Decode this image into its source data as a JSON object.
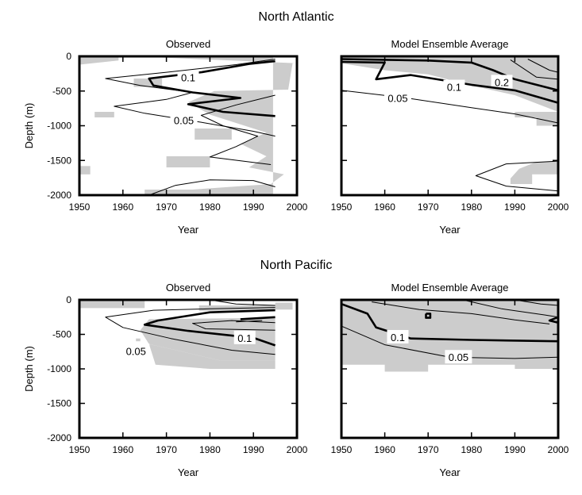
{
  "colors": {
    "shading": "#cccccc",
    "contour": "#000000",
    "background": "#ffffff"
  },
  "sections": [
    {
      "title": "North Atlantic"
    },
    {
      "title": "North Pacific"
    }
  ],
  "chart_data": [
    {
      "type": "contour",
      "region": "North Atlantic",
      "title": "Observed",
      "xlabel": "Year",
      "ylabel": "Depth (m)",
      "xlim": [
        1950,
        2000
      ],
      "ylim": [
        -2000,
        0
      ],
      "xticks": [
        "1950",
        "1960",
        "1970",
        "1980",
        "1990",
        "2000"
      ],
      "yticks": [
        "0",
        "-500",
        "-1000",
        "-1500",
        "-2000"
      ],
      "shading": "grey",
      "contours": [
        {
          "level": "0.1",
          "weight": "bold",
          "label_at": [
            1975,
            -300
          ],
          "points": [
            [
              1995,
              -70
            ],
            [
              1989,
              -110
            ],
            [
              1978,
              -230
            ],
            [
              1966,
              -320
            ],
            [
              1967,
              -420
            ],
            [
              1976,
              -520
            ],
            [
              1987,
              -600
            ],
            [
              1975,
              -690
            ],
            [
              1983,
              -800
            ],
            [
              1995,
              -860
            ]
          ]
        },
        {
          "level": "0.05",
          "weight": "thin",
          "label_at": [
            1974,
            -920
          ],
          "points": [
            [
              1995,
              -40
            ],
            [
              1986,
              -120
            ],
            [
              1970,
              -230
            ],
            [
              1956,
              -320
            ],
            [
              1964,
              -420
            ],
            [
              1976,
              -520
            ],
            [
              1970,
              -620
            ],
            [
              1958,
              -720
            ],
            [
              1965,
              -820
            ],
            [
              1978,
              -950
            ],
            [
              1990,
              -1080
            ],
            [
              1995,
              -1150
            ]
          ]
        },
        {
          "level": "",
          "weight": "thin",
          "points": [
            [
              1995,
              -560
            ],
            [
              1986,
              -700
            ],
            [
              1978,
              -850
            ],
            [
              1983,
              -1000
            ],
            [
              1991,
              -1150
            ],
            [
              1986,
              -1300
            ],
            [
              1980,
              -1450
            ],
            [
              1994,
              -1560
            ]
          ]
        },
        {
          "level": "",
          "weight": "thin",
          "points": [
            [
              1966,
              -2000
            ],
            [
              1972,
              -1860
            ],
            [
              1980,
              -1780
            ],
            [
              1990,
              -1790
            ],
            [
              1995,
              -1880
            ]
          ]
        }
      ]
    },
    {
      "type": "contour",
      "region": "North Atlantic",
      "title": "Model Ensemble Average",
      "xlabel": "Year",
      "ylabel": "",
      "xlim": [
        1950,
        2000
      ],
      "ylim": [
        -2000,
        0
      ],
      "xticks": [
        "1950",
        "1960",
        "1970",
        "1980",
        "1990",
        "2000"
      ],
      "yticks": [],
      "shading": "grey",
      "contours": [
        {
          "level": "0.2",
          "weight": "bold",
          "label_at": [
            1987,
            -370
          ],
          "points": [
            [
              1950,
              -40
            ],
            [
              1970,
              -60
            ],
            [
              1980,
              -90
            ],
            [
              1985,
              -200
            ],
            [
              1990,
              -330
            ],
            [
              2000,
              -490
            ]
          ]
        },
        {
          "level": "0.1",
          "weight": "bold",
          "label_at": [
            1976,
            -440
          ],
          "points": [
            [
              1950,
              -80
            ],
            [
              1960,
              -90
            ],
            [
              1958,
              -330
            ],
            [
              1966,
              -270
            ],
            [
              1980,
              -410
            ],
            [
              1990,
              -490
            ],
            [
              2000,
              -670
            ]
          ]
        },
        {
          "level": "0.05",
          "weight": "thin",
          "label_at": [
            1963,
            -600
          ],
          "points": [
            [
              1950,
              -490
            ],
            [
              1965,
              -600
            ],
            [
              1980,
              -740
            ],
            [
              1990,
              -830
            ],
            [
              2000,
              -960
            ]
          ]
        },
        {
          "level": "",
          "weight": "thin",
          "points": [
            [
              1989,
              -50
            ],
            [
              1995,
              -300
            ],
            [
              2000,
              -330
            ]
          ]
        },
        {
          "level": "",
          "weight": "thin",
          "points": [
            [
              1993,
              -40
            ],
            [
              1998,
              -200
            ],
            [
              2000,
              -230
            ]
          ]
        },
        {
          "level": "",
          "weight": "thin",
          "points": [
            [
              2000,
              -1510
            ],
            [
              1988,
              -1550
            ],
            [
              1981,
              -1720
            ],
            [
              1988,
              -1870
            ],
            [
              2000,
              -1940
            ]
          ]
        }
      ]
    },
    {
      "type": "contour",
      "region": "North Pacific",
      "title": "Observed",
      "xlabel": "Year",
      "ylabel": "Depth (m)",
      "xlim": [
        1950,
        2000
      ],
      "ylim": [
        -2000,
        0
      ],
      "xticks": [
        "1950",
        "1960",
        "1970",
        "1980",
        "1990",
        "2000"
      ],
      "yticks": [
        "0",
        "-500",
        "-1000",
        "-1500",
        "-2000"
      ],
      "shading": "grey",
      "contours": [
        {
          "level": "0.1",
          "weight": "bold",
          "label_at": [
            1988,
            -550
          ],
          "points": [
            [
              1995,
              -150
            ],
            [
              1980,
              -180
            ],
            [
              1968,
              -300
            ],
            [
              1965,
              -360
            ],
            [
              1975,
              -450
            ],
            [
              1990,
              -550
            ],
            [
              1995,
              -660
            ]
          ]
        },
        {
          "level": "0.05",
          "weight": "thin",
          "label_at": [
            1963,
            -740
          ],
          "points": [
            [
              1995,
              -110
            ],
            [
              1980,
              -130
            ],
            [
              1967,
              -150
            ],
            [
              1956,
              -250
            ],
            [
              1960,
              -400
            ],
            [
              1971,
              -560
            ],
            [
              1985,
              -730
            ],
            [
              1995,
              -790
            ]
          ]
        },
        {
          "level": "",
          "weight": "thin",
          "points": [
            [
              1995,
              -330
            ],
            [
              1985,
              -300
            ],
            [
              1976,
              -340
            ],
            [
              1979,
              -420
            ],
            [
              1995,
              -440
            ]
          ]
        },
        {
          "level": "",
          "weight": "thin",
          "points": [
            [
              1980,
              0
            ],
            [
              1986,
              -60
            ],
            [
              1995,
              -80
            ]
          ]
        },
        {
          "level": "",
          "weight": "bold",
          "points": [
            [
              1987,
              -280
            ],
            [
              1995,
              -250
            ]
          ]
        },
        {
          "level": "",
          "weight": "thin",
          "points": [
            [
              1986,
              -320
            ],
            [
              1992,
              -300
            ]
          ]
        }
      ]
    },
    {
      "type": "contour",
      "region": "North Pacific",
      "title": "Model Ensemble Average",
      "xlabel": "Year",
      "ylabel": "",
      "xlim": [
        1950,
        2000
      ],
      "ylim": [
        -2000,
        0
      ],
      "xticks": [
        "1950",
        "1960",
        "1970",
        "1980",
        "1990",
        "2000"
      ],
      "yticks": [],
      "shading": "grey",
      "contours": [
        {
          "level": "0.1",
          "weight": "bold",
          "label_at": [
            1963,
            -540
          ],
          "points": [
            [
              1950,
              -60
            ],
            [
              1956,
              -200
            ],
            [
              1958,
              -400
            ],
            [
              1966,
              -560
            ],
            [
              1980,
              -580
            ],
            [
              2000,
              -600
            ]
          ]
        },
        {
          "level": "0.05",
          "weight": "thin",
          "label_at": [
            1977,
            -830
          ],
          "points": [
            [
              1950,
              -380
            ],
            [
              1960,
              -650
            ],
            [
              1975,
              -830
            ],
            [
              1990,
              -850
            ],
            [
              2000,
              -830
            ]
          ]
        },
        {
          "level": "",
          "weight": "thin",
          "points": [
            [
              1957,
              -30
            ],
            [
              1968,
              -140
            ],
            [
              1980,
              -200
            ],
            [
              1990,
              -290
            ],
            [
              1998,
              -350
            ]
          ]
        },
        {
          "level": "",
          "weight": "thin",
          "points": [
            [
              1978,
              0
            ],
            [
              1987,
              -130
            ],
            [
              1997,
              -220
            ],
            [
              2000,
              -250
            ]
          ]
        },
        {
          "level": "",
          "weight": "thin",
          "points": [
            [
              1990,
              0
            ],
            [
              1996,
              -60
            ],
            [
              2000,
              -80
            ]
          ]
        },
        {
          "level": "",
          "weight": "bold",
          "points": [
            [
              2000,
              -250
            ],
            [
              1998,
              -300
            ],
            [
              2000,
              -330
            ]
          ]
        },
        {
          "level": "",
          "weight": "bold",
          "points": [
            [
              1969.5,
              -200
            ],
            [
              1970.5,
              -200
            ],
            [
              1970.5,
              -260
            ],
            [
              1969.5,
              -260
            ],
            [
              1969.5,
              -200
            ]
          ]
        }
      ]
    }
  ]
}
